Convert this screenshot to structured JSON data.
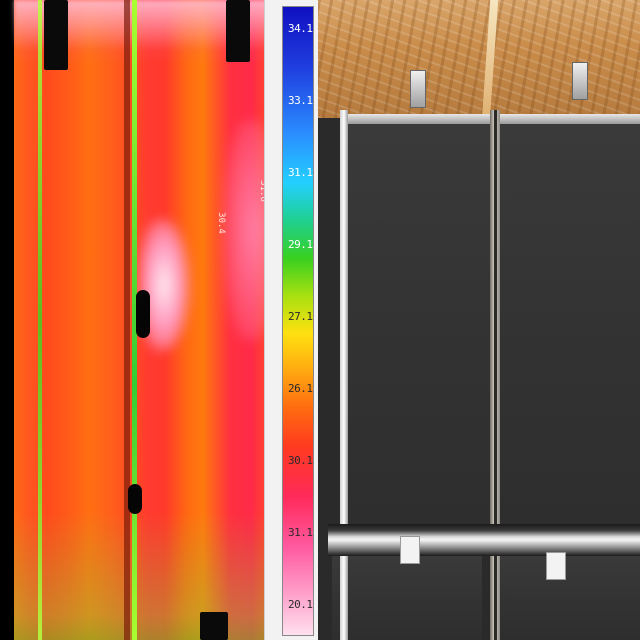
{
  "image": {
    "description_tags": [
      "thermal-panel",
      "temperature-scale",
      "photo-panel"
    ]
  },
  "scale": {
    "ticks": [
      {
        "label": "34.1",
        "tone": "light"
      },
      {
        "label": "33.1",
        "tone": "light"
      },
      {
        "label": "31.1",
        "tone": "light"
      },
      {
        "label": "29.1",
        "tone": "light"
      },
      {
        "label": "27.1",
        "tone": "dark"
      },
      {
        "label": "26.1",
        "tone": "dark"
      },
      {
        "label": "30.1",
        "tone": "dark"
      },
      {
        "label": "31.1",
        "tone": "dark"
      },
      {
        "label": "20.1",
        "tone": "dark"
      }
    ]
  },
  "thermal": {
    "labels": [
      "30.4",
      "31.6"
    ]
  }
}
